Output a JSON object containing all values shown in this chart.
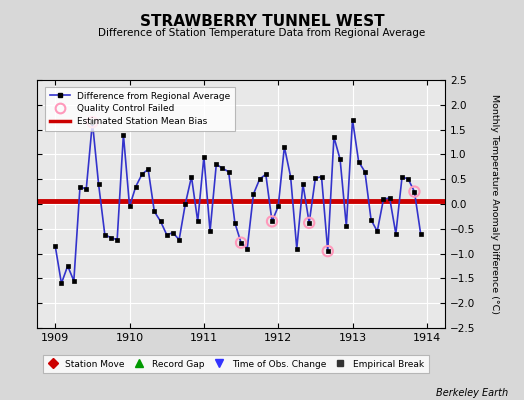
{
  "title": "STRAWBERRY TUNNEL WEST",
  "subtitle": "Difference of Station Temperature Data from Regional Average",
  "ylabel": "Monthly Temperature Anomaly Difference (°C)",
  "ylim": [
    -2.5,
    2.5
  ],
  "yticks": [
    -2.5,
    -2,
    -1.5,
    -1,
    -0.5,
    0,
    0.5,
    1,
    1.5,
    2,
    2.5
  ],
  "xlim": [
    1908.75,
    1914.25
  ],
  "xticks": [
    1909,
    1910,
    1911,
    1912,
    1913,
    1914
  ],
  "background_color": "#d8d8d8",
  "plot_bg_color": "#e8e8e8",
  "bias_value": 0.07,
  "line_color": "#3333cc",
  "line_width": 1.2,
  "marker_color": "#000000",
  "marker_size": 3.5,
  "bias_color": "#cc0000",
  "bias_linewidth": 3.5,
  "qc_fail_color": "#ff99bb",
  "x_values": [
    1909.0,
    1909.083,
    1909.167,
    1909.25,
    1909.333,
    1909.417,
    1909.5,
    1909.583,
    1909.667,
    1909.75,
    1909.833,
    1909.917,
    1910.0,
    1910.083,
    1910.167,
    1910.25,
    1910.333,
    1910.417,
    1910.5,
    1910.583,
    1910.667,
    1910.75,
    1910.833,
    1910.917,
    1911.0,
    1911.083,
    1911.167,
    1911.25,
    1911.333,
    1911.417,
    1911.5,
    1911.583,
    1911.667,
    1911.75,
    1911.833,
    1911.917,
    1912.0,
    1912.083,
    1912.167,
    1912.25,
    1912.333,
    1912.417,
    1912.5,
    1912.583,
    1912.667,
    1912.75,
    1912.833,
    1912.917,
    1913.0,
    1913.083,
    1913.167,
    1913.25,
    1913.333,
    1913.417,
    1913.5,
    1913.583,
    1913.667,
    1913.75,
    1913.833,
    1913.917
  ],
  "y_values": [
    -0.85,
    -1.6,
    -1.25,
    -1.55,
    0.35,
    0.3,
    1.65,
    0.4,
    -0.62,
    -0.68,
    -0.72,
    1.4,
    -0.05,
    0.35,
    0.6,
    0.7,
    -0.15,
    -0.35,
    -0.62,
    -0.58,
    -0.72,
    0.0,
    0.55,
    -0.35,
    0.95,
    -0.55,
    0.8,
    0.72,
    0.65,
    -0.38,
    -0.78,
    -0.9,
    0.2,
    0.5,
    0.6,
    -0.35,
    -0.05,
    1.15,
    0.55,
    -0.9,
    0.4,
    -0.38,
    0.52,
    0.55,
    -0.95,
    1.35,
    0.9,
    -0.45,
    1.7,
    0.85,
    0.65,
    -0.32,
    -0.55,
    0.1,
    0.12,
    -0.6,
    0.55,
    0.5,
    0.25,
    -0.6
  ],
  "qc_fail_indices": [
    6,
    30,
    35,
    41,
    44,
    58
  ],
  "footer_text": "Berkeley Earth",
  "legend2_items": [
    {
      "label": "Station Move",
      "color": "#cc0000",
      "marker": "D"
    },
    {
      "label": "Record Gap",
      "color": "#009900",
      "marker": "^"
    },
    {
      "label": "Time of Obs. Change",
      "color": "#3333ff",
      "marker": "v"
    },
    {
      "label": "Empirical Break",
      "color": "#333333",
      "marker": "s"
    }
  ]
}
